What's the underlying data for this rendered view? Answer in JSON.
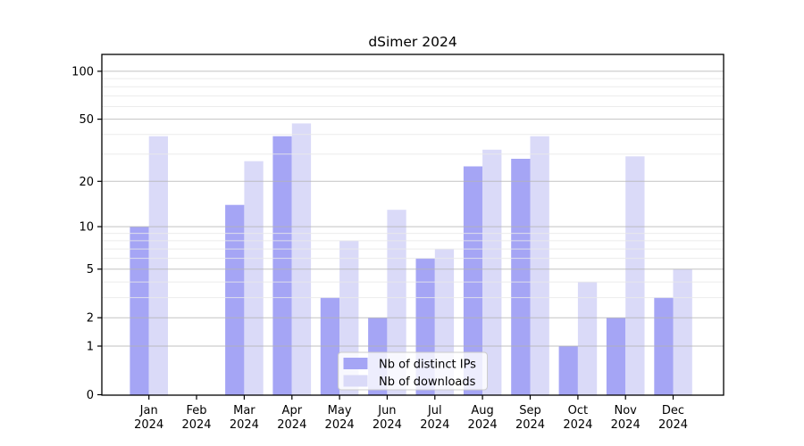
{
  "chart_data": {
    "type": "bar",
    "title": "dSimer 2024",
    "year": "2024",
    "months": [
      "Jan",
      "Feb",
      "Mar",
      "Apr",
      "May",
      "Jun",
      "Jul",
      "Aug",
      "Sep",
      "Oct",
      "Nov",
      "Dec"
    ],
    "categories": [
      "Jan 2024",
      "Feb 2024",
      "Mar 2024",
      "Apr 2024",
      "May 2024",
      "Jun 2024",
      "Jul 2024",
      "Aug 2024",
      "Sep 2024",
      "Oct 2024",
      "Nov 2024",
      "Dec 2024"
    ],
    "series": [
      {
        "name": "Nb of distinct IPs",
        "color": "#a5a5f5",
        "values": [
          10,
          0,
          14,
          39,
          3,
          2,
          6,
          25,
          28,
          1,
          2,
          3
        ]
      },
      {
        "name": "Nb of downloads",
        "color": "#dadaf8",
        "values": [
          39,
          0,
          27,
          47,
          8,
          13,
          7,
          32,
          39,
          4,
          29,
          5
        ]
      }
    ],
    "yscale": "log1p",
    "yticks": [
      0,
      1,
      2,
      5,
      10,
      20,
      50,
      100
    ],
    "minor_grid_values": [
      3,
      4,
      6,
      7,
      8,
      9,
      30,
      40,
      60,
      70,
      80,
      90
    ],
    "ylim": [
      0,
      128
    ],
    "grid": true,
    "legend_position": "lower center"
  },
  "colors": {
    "bar_ips": "#a5a5f5",
    "bar_downloads": "#dadaf8",
    "major_grid": "#b3b3b3",
    "minor_grid": "#e9e9e9",
    "axis": "#000000",
    "legend_bg": "#ffffff",
    "legend_border": "#cccccc",
    "background": "#ffffff"
  }
}
